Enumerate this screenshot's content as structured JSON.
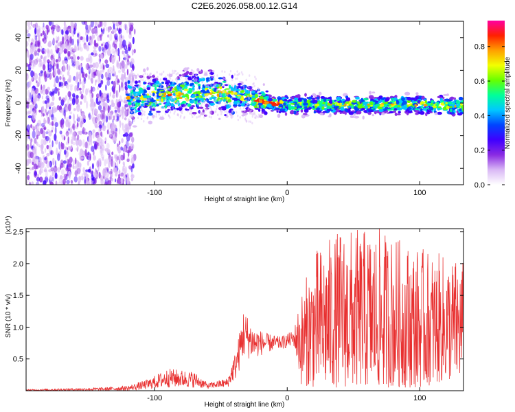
{
  "title": "C2E6.2026.058.00.12.G14",
  "chart_data": [
    {
      "type": "heatmap",
      "name": "spectrogram",
      "xlabel": "Height of straight line (km)",
      "ylabel": "Frequency (Hz)",
      "xlim": [
        -197,
        133
      ],
      "ylim": [
        -50,
        50
      ],
      "xticks": [
        -100,
        0,
        100
      ],
      "yticks": [
        -40,
        -20,
        0,
        20,
        40
      ],
      "colorbar": {
        "label": "Normalized spectral amplitude",
        "range": [
          0,
          0.95
        ],
        "ticks": [
          0.0,
          0.2,
          0.4,
          0.6,
          0.8
        ],
        "tick_labels": [
          "0.0",
          "0.2",
          "0.4",
          "0.6",
          "0.8"
        ],
        "colors": [
          "#ffffff",
          "#d9b8f5",
          "#8a2be2",
          "#3f00ff",
          "#0044ff",
          "#00c8ff",
          "#00ff9a",
          "#66ff00",
          "#f2ff00",
          "#ffa000",
          "#ff2000",
          "#ff00a0"
        ]
      },
      "ridge": [
        {
          "x": -115,
          "f": 3
        },
        {
          "x": -100,
          "f": 4
        },
        {
          "x": -85,
          "f": 5
        },
        {
          "x": -70,
          "f": 6
        },
        {
          "x": -60,
          "f": 6
        },
        {
          "x": -50,
          "f": 6
        },
        {
          "x": -40,
          "f": 5
        },
        {
          "x": -30,
          "f": 3
        },
        {
          "x": -20,
          "f": 1
        },
        {
          "x": -10,
          "f": 0
        },
        {
          "x": 0,
          "f": -1
        },
        {
          "x": 50,
          "f": -1
        },
        {
          "x": 100,
          "f": -1
        },
        {
          "x": 133,
          "f": -2
        }
      ]
    },
    {
      "type": "line",
      "name": "snr",
      "xlabel": "Height of straight line (km)",
      "ylabel": "SNR (10 * v/v)",
      "y_multiplier": "(x10⁴)",
      "xlim": [
        -197,
        133
      ],
      "ylim": [
        0,
        2.55
      ],
      "xticks": [
        -100,
        0,
        100
      ],
      "yticks": [
        0.5,
        1.0,
        1.5,
        2.0,
        2.5
      ],
      "ytick_labels": [
        "0.5",
        "1.0",
        "1.5",
        "2.0",
        "2.5"
      ],
      "color": "#e83030",
      "envelope": [
        {
          "x": -197,
          "low": 0.0,
          "high": 0.02
        },
        {
          "x": -140,
          "low": 0.0,
          "high": 0.05
        },
        {
          "x": -120,
          "low": 0.0,
          "high": 0.08
        },
        {
          "x": -105,
          "low": 0.02,
          "high": 0.18
        },
        {
          "x": -90,
          "low": 0.05,
          "high": 0.35
        },
        {
          "x": -80,
          "low": 0.05,
          "high": 0.33
        },
        {
          "x": -70,
          "low": 0.05,
          "high": 0.3
        },
        {
          "x": -60,
          "low": 0.03,
          "high": 0.12
        },
        {
          "x": -45,
          "low": 0.05,
          "high": 0.2
        },
        {
          "x": -38,
          "low": 0.2,
          "high": 0.7
        },
        {
          "x": -33,
          "low": 0.5,
          "high": 1.3
        },
        {
          "x": -25,
          "low": 0.5,
          "high": 1.0
        },
        {
          "x": -15,
          "low": 0.6,
          "high": 0.9
        },
        {
          "x": -5,
          "low": 0.65,
          "high": 0.85
        },
        {
          "x": 5,
          "low": 0.7,
          "high": 0.95
        },
        {
          "x": 10,
          "low": 0.1,
          "high": 1.5
        },
        {
          "x": 20,
          "low": 0.05,
          "high": 2.2
        },
        {
          "x": 40,
          "low": 0.05,
          "high": 2.55
        },
        {
          "x": 70,
          "low": 0.05,
          "high": 2.55
        },
        {
          "x": 100,
          "low": 0.05,
          "high": 2.25
        },
        {
          "x": 133,
          "low": 0.2,
          "high": 2.05
        }
      ]
    }
  ]
}
